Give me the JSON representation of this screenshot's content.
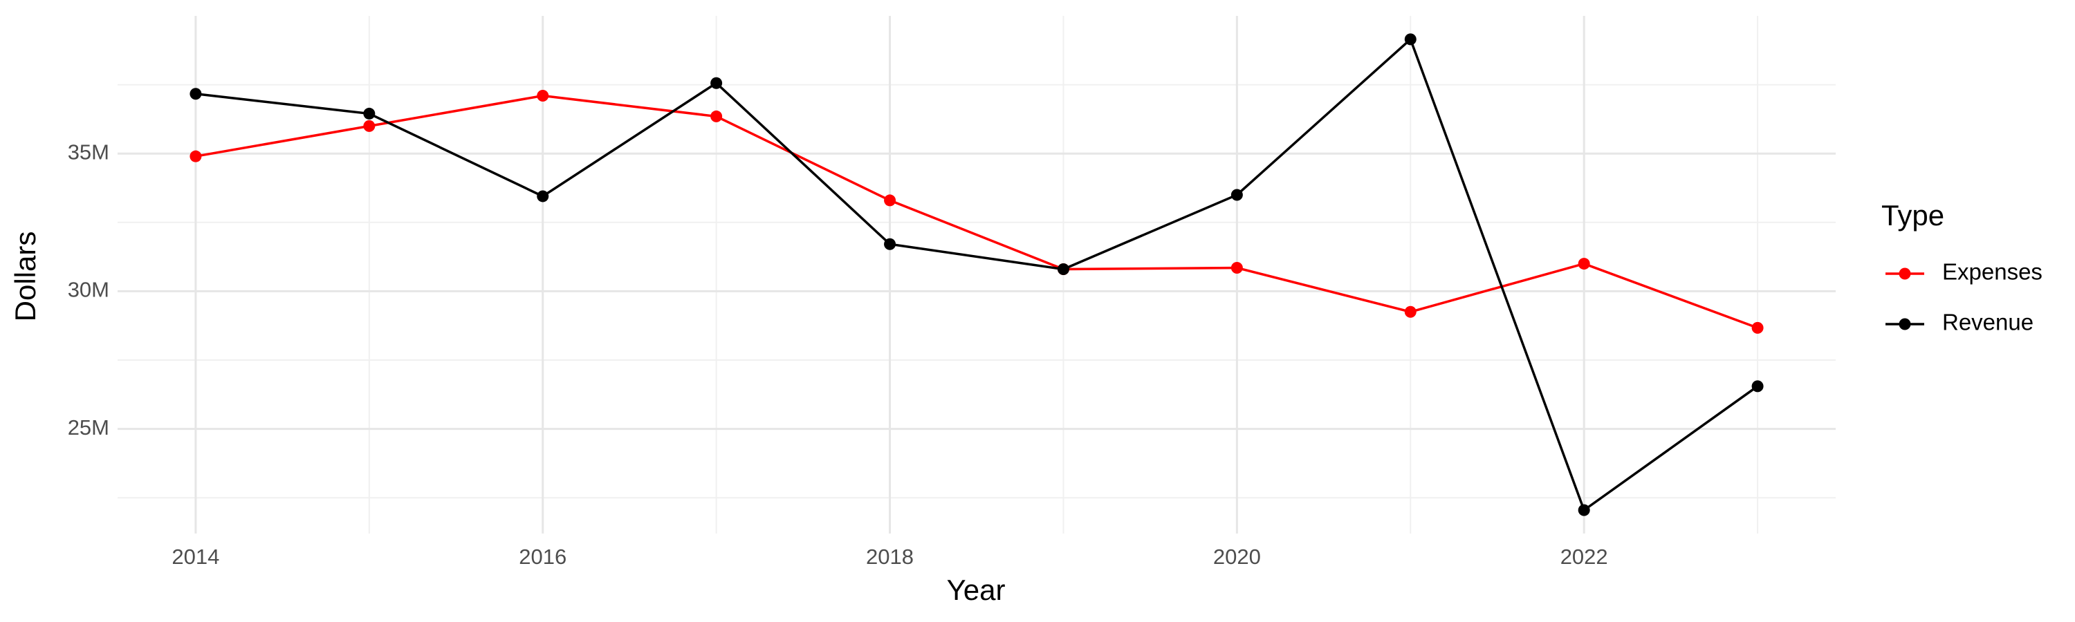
{
  "chart_data": {
    "type": "line",
    "x_label": "Year",
    "y_label": "Dollars",
    "legend_title": "Type",
    "legend": "right",
    "grid": true,
    "x": [
      2014,
      2015,
      2016,
      2017,
      2018,
      2019,
      2020,
      2021,
      2022,
      2023
    ],
    "series": [
      {
        "name": "Expenses",
        "color": "#ff0000",
        "values": [
          34900000,
          36000000,
          37100000,
          36350000,
          33300000,
          30800000,
          30850000,
          29250000,
          31000000,
          28670000
        ]
      },
      {
        "name": "Revenue",
        "color": "#000000",
        "values": [
          37170000,
          36450000,
          33450000,
          37560000,
          31710000,
          30800000,
          33500000,
          39150000,
          22050000,
          26550000
        ]
      }
    ],
    "xlim": [
      2013.55,
      2023.45
    ],
    "xticks": [
      2014,
      2016,
      2018,
      2020,
      2022
    ],
    "x_minor_ticks": [
      2015,
      2017,
      2019,
      2021,
      2023
    ],
    "ylim": [
      21200000,
      40000000
    ],
    "yticks": [
      {
        "value": 25000000,
        "label": "25M"
      },
      {
        "value": 30000000,
        "label": "30M"
      },
      {
        "value": 35000000,
        "label": "35M"
      }
    ],
    "y_minor_ticks": [
      22500000,
      27500000,
      32500000,
      37500000
    ]
  }
}
